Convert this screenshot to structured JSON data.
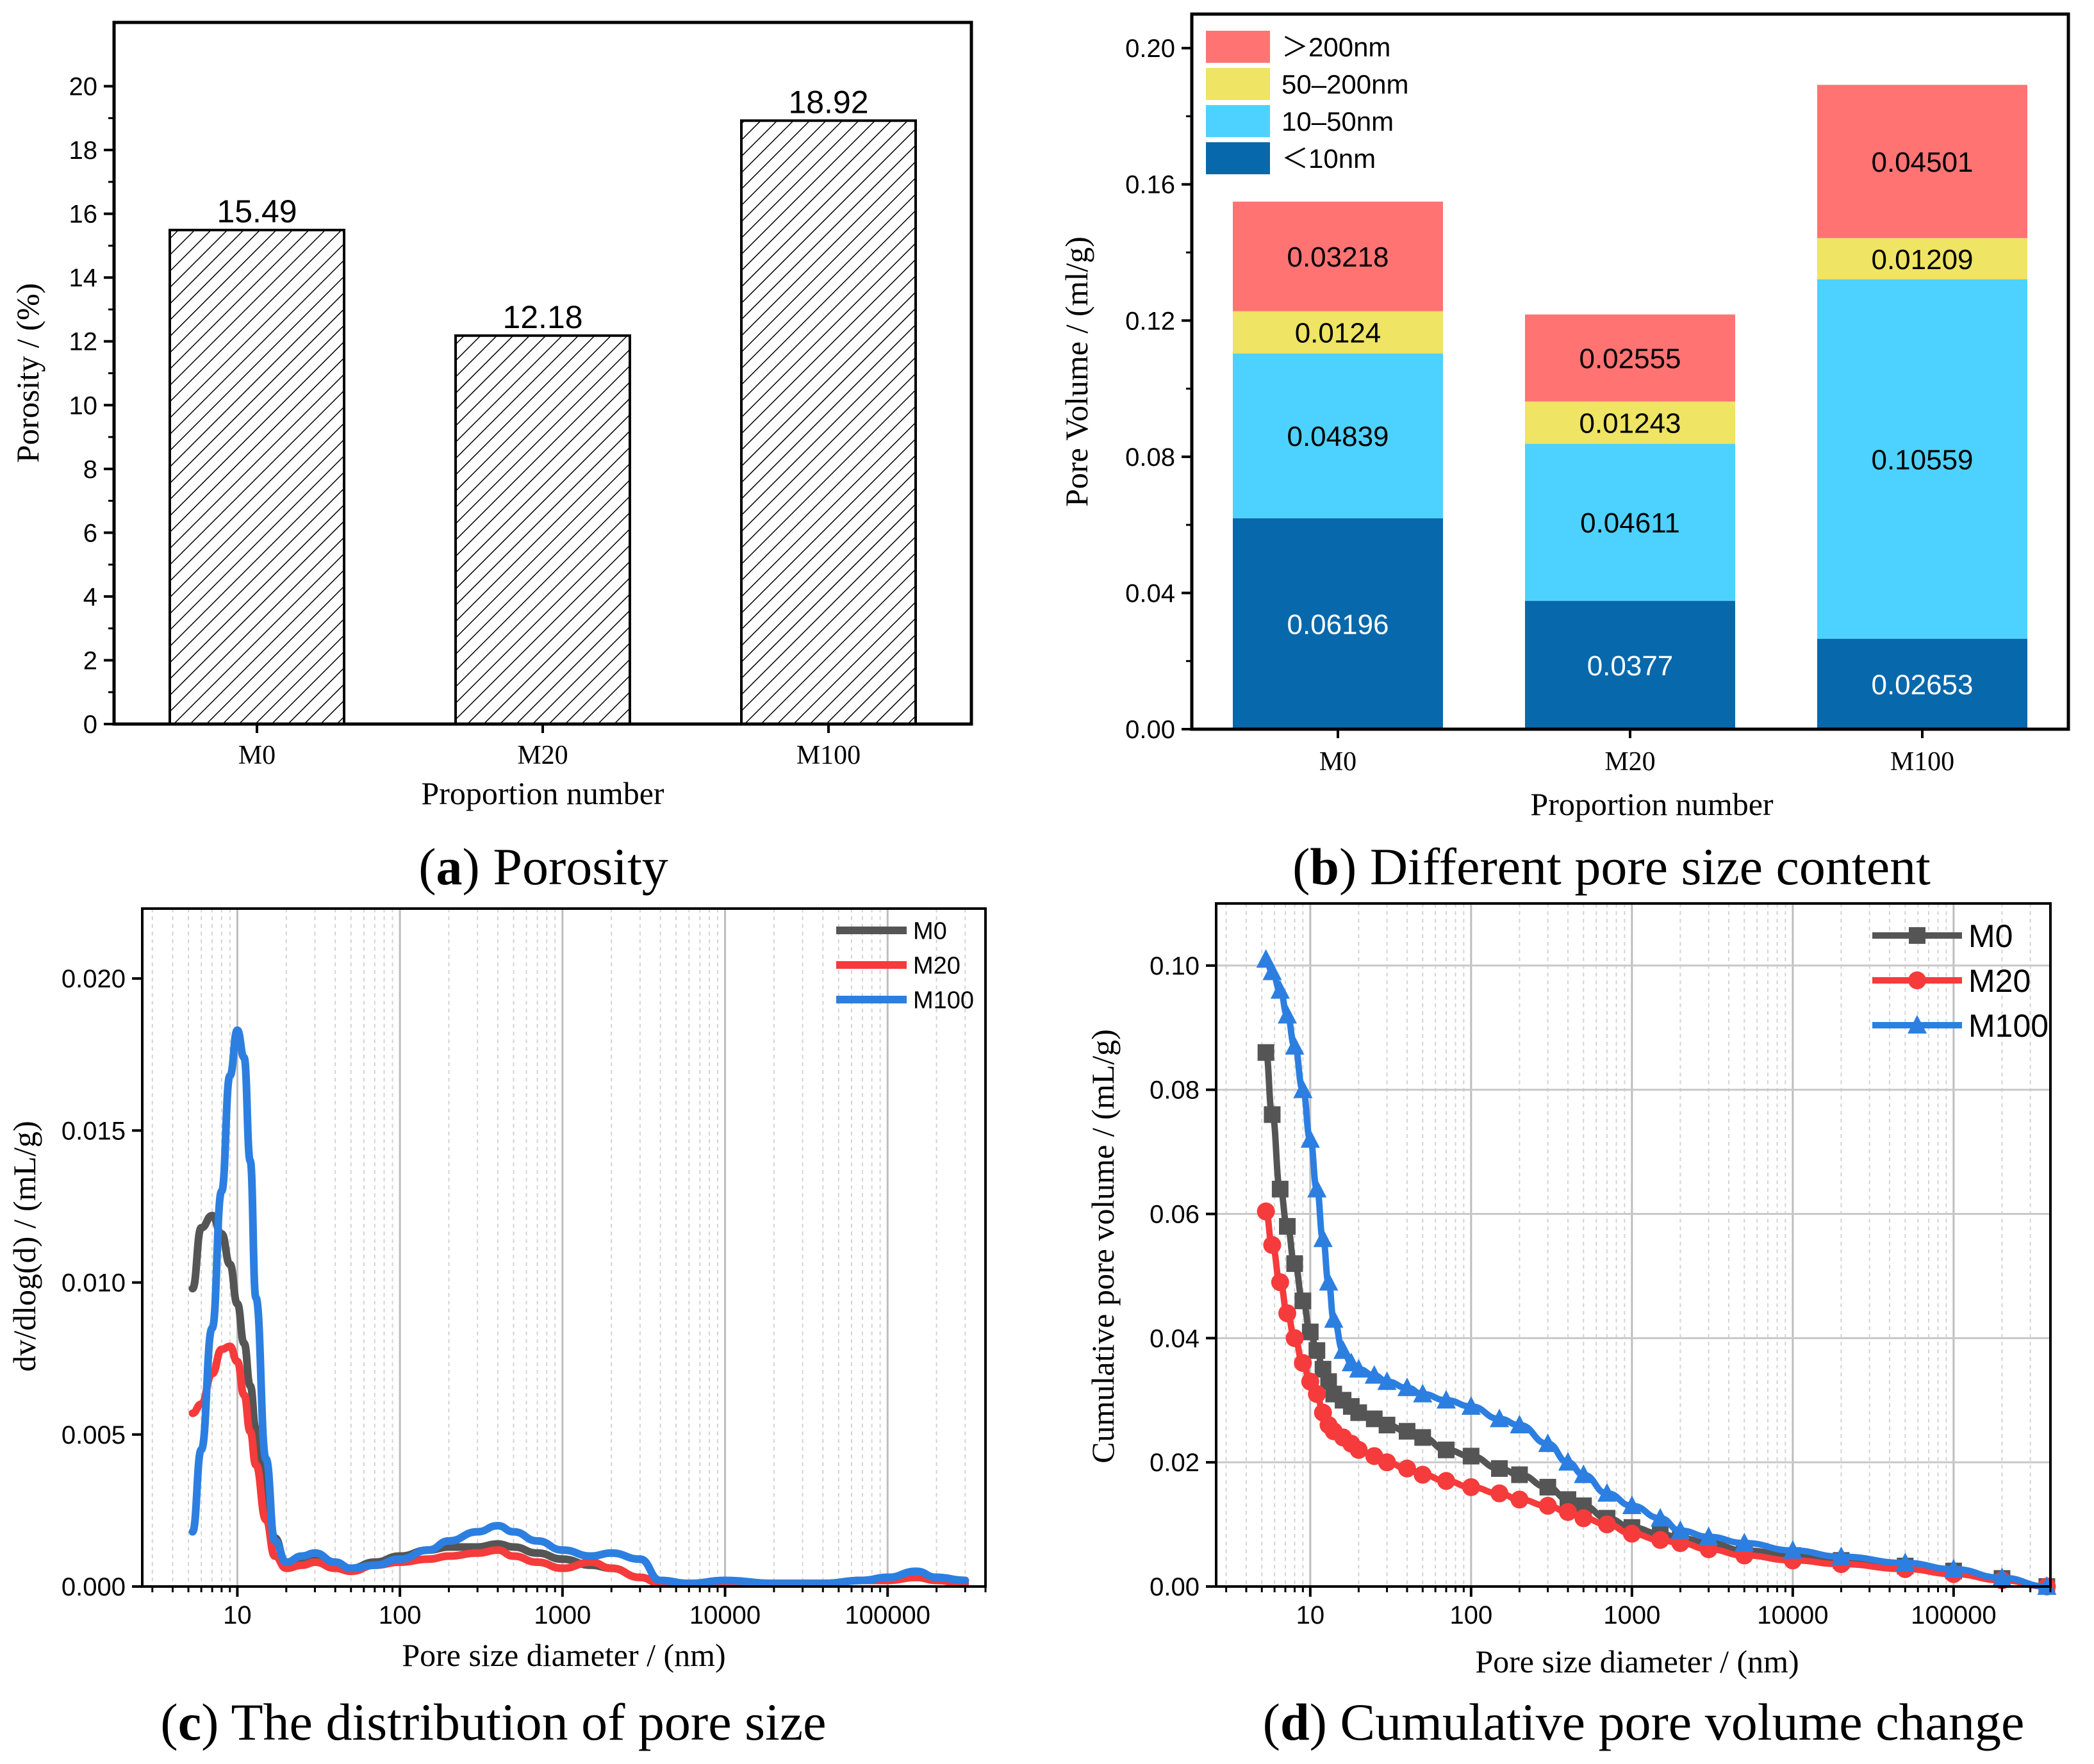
{
  "chart_data": [
    {
      "id": "a",
      "type": "bar",
      "caption_letter": "a",
      "caption_text": "Porosity",
      "categories": [
        "M0",
        "M20",
        "M100"
      ],
      "values": [
        15.49,
        12.18,
        18.92
      ],
      "value_labels": [
        "15.49",
        "12.18",
        "18.92"
      ],
      "xlabel": "Proportion number",
      "ylabel": "Porosity / (%)",
      "ylim": [
        0,
        22
      ],
      "yticks": [
        0,
        2,
        4,
        6,
        8,
        10,
        12,
        14,
        16,
        18,
        20
      ],
      "ytick_labels": [
        "0",
        "2",
        "4",
        "6",
        "8",
        "10",
        "12",
        "14",
        "16",
        "18",
        "20"
      ],
      "fill": "hatched"
    },
    {
      "id": "b",
      "type": "bar",
      "stacked": true,
      "caption_letter": "b",
      "caption_text": "Different pore size content",
      "categories": [
        "M0",
        "M20",
        "M100"
      ],
      "series": [
        {
          "name": "＜10nm",
          "color": "#0868AC",
          "label_color": "#ffffff",
          "values": [
            0.06196,
            0.0377,
            0.02653
          ],
          "labels": [
            "0.06196",
            "0.0377",
            "0.02653"
          ]
        },
        {
          "name": "10–50nm",
          "color": "#4DD2FF",
          "label_color": "#000000",
          "values": [
            0.04839,
            0.04611,
            0.10559
          ],
          "labels": [
            "0.04839",
            "0.04611",
            "0.10559"
          ]
        },
        {
          "name": "50–200nm",
          "color": "#EFE463",
          "label_color": "#000000",
          "values": [
            0.0124,
            0.01243,
            0.01209
          ],
          "labels": [
            "0.0124",
            "0.01243",
            "0.01209"
          ]
        },
        {
          "name": "＞200nm",
          "color": "#FF7373",
          "label_color": "#000000",
          "values": [
            0.03218,
            0.02555,
            0.04501
          ],
          "labels": [
            "0.03218",
            "0.02555",
            "0.04501"
          ]
        }
      ],
      "legend_order": [
        3,
        2,
        1,
        0
      ],
      "xlabel": "Proportion number",
      "ylabel": "Pore Volume / (ml/g)",
      "ylim": [
        0,
        0.21
      ],
      "yticks": [
        0,
        0.04,
        0.08,
        0.12,
        0.16,
        0.2
      ],
      "ytick_labels": [
        "0.00",
        "0.04",
        "0.08",
        "0.12",
        "0.16",
        "0.20"
      ],
      "legend_position": "top-left"
    },
    {
      "id": "c",
      "type": "line",
      "caption_letter": "c",
      "caption_text": "The distribution of pore size",
      "xscale": "log",
      "xlim": [
        2.6,
        400000
      ],
      "ylim": [
        0,
        0.0223
      ],
      "xticks": [
        10,
        100,
        1000,
        10000,
        100000
      ],
      "xtick_labels": [
        "10",
        "100",
        "1000",
        "10000",
        "100000"
      ],
      "yticks": [
        0,
        0.005,
        0.01,
        0.015,
        0.02
      ],
      "ytick_labels": [
        "0.000",
        "0.005",
        "0.010",
        "0.015",
        "0.020"
      ],
      "xlabel": "Pore size diameter / (nm)",
      "ylabel": "dv/dlog(d) / (mL/g)",
      "legend_position": "top-right",
      "series": [
        {
          "name": "M0",
          "color": "#555555",
          "x": [
            5.3,
            6,
            7,
            8,
            9,
            10,
            11,
            12,
            13,
            15,
            17,
            20,
            25,
            30,
            40,
            50,
            70,
            100,
            150,
            200,
            300,
            400,
            500,
            700,
            1000,
            1500,
            2000,
            3000,
            4000,
            6000,
            10000,
            20000,
            40000,
            70000,
            100000,
            150000,
            200000,
            300000
          ],
          "y": [
            0.0098,
            0.0118,
            0.0122,
            0.0116,
            0.0106,
            0.0093,
            0.008,
            0.0066,
            0.0052,
            0.0032,
            0.0016,
            0.0007,
            0.0008,
            0.0009,
            0.0007,
            0.0006,
            0.0008,
            0.001,
            0.0012,
            0.0013,
            0.0013,
            0.0014,
            0.0013,
            0.0011,
            0.0009,
            0.0007,
            0.0006,
            0.0003,
            0.0001,
            0.0001,
            0.0001,
            0.0001,
            0.0001,
            0.0002,
            0.0003,
            0.0003,
            0.0003,
            0.0002
          ]
        },
        {
          "name": "M20",
          "color": "#F53B3B",
          "x": [
            5.3,
            6,
            7,
            8,
            9,
            10,
            11,
            12,
            13,
            15,
            17,
            20,
            25,
            30,
            40,
            50,
            70,
            100,
            150,
            200,
            300,
            400,
            500,
            700,
            1000,
            1500,
            2000,
            3000,
            4000,
            6000,
            10000,
            20000,
            40000,
            70000,
            100000,
            150000,
            200000,
            300000
          ],
          "y": [
            0.0057,
            0.006,
            0.007,
            0.0078,
            0.0079,
            0.0074,
            0.0063,
            0.0051,
            0.004,
            0.0022,
            0.001,
            0.0006,
            0.0007,
            0.0008,
            0.0006,
            0.0005,
            0.0007,
            0.0008,
            0.0009,
            0.001,
            0.0011,
            0.0012,
            0.001,
            0.0008,
            0.0006,
            0.0008,
            0.0006,
            0.0003,
            0.0001,
            0.0001,
            0.0001,
            0.0001,
            0.0001,
            0.0002,
            0.0002,
            0.0003,
            0.0002,
            0.0001
          ]
        },
        {
          "name": "M100",
          "color": "#2C7FE0",
          "x": [
            5.3,
            6,
            7,
            8,
            9,
            10,
            11,
            12,
            13,
            15,
            17,
            20,
            25,
            30,
            40,
            50,
            70,
            100,
            150,
            200,
            300,
            400,
            500,
            700,
            1000,
            1500,
            2000,
            3000,
            4000,
            6000,
            10000,
            20000,
            40000,
            70000,
            100000,
            150000,
            200000,
            300000
          ],
          "y": [
            0.0018,
            0.0045,
            0.0085,
            0.013,
            0.0168,
            0.0183,
            0.0174,
            0.014,
            0.0095,
            0.0042,
            0.0015,
            0.0008,
            0.001,
            0.0011,
            0.0008,
            0.0006,
            0.0007,
            0.0009,
            0.0012,
            0.0015,
            0.0018,
            0.002,
            0.0018,
            0.0015,
            0.0012,
            0.001,
            0.0011,
            0.0009,
            0.0002,
            0.0001,
            0.0002,
            0.0001,
            0.0001,
            0.0002,
            0.0003,
            0.0005,
            0.0003,
            0.0002
          ]
        }
      ]
    },
    {
      "id": "d",
      "type": "line",
      "markers": true,
      "caption_letter": "d",
      "caption_text": "Cumulative pore volume change",
      "xscale": "log",
      "xlim": [
        2.6,
        400000
      ],
      "ylim": [
        0,
        0.11
      ],
      "xticks": [
        10,
        100,
        1000,
        10000,
        100000
      ],
      "xtick_labels": [
        "10",
        "100",
        "1000",
        "10000",
        "100000"
      ],
      "yticks": [
        0,
        0.02,
        0.04,
        0.06,
        0.08,
        0.1
      ],
      "ytick_labels": [
        "0.00",
        "0.02",
        "0.04",
        "0.06",
        "0.08",
        "0.10"
      ],
      "xlabel": "Pore size diameter / (nm)",
      "ylabel": "Cumulative pore volume / (mL/g)",
      "legend_position": "top-right",
      "series": [
        {
          "name": "M0",
          "color": "#555555",
          "marker": "square",
          "x": [
            5.3,
            5.8,
            6.5,
            7.2,
            8,
            9,
            10,
            11,
            12,
            13,
            14,
            16,
            18,
            20,
            25,
            30,
            40,
            50,
            70,
            100,
            150,
            200,
            300,
            400,
            500,
            700,
            1000,
            1500,
            2000,
            3000,
            5000,
            10000,
            20000,
            50000,
            100000,
            200000,
            380000
          ],
          "y": [
            0.086,
            0.076,
            0.064,
            0.058,
            0.052,
            0.046,
            0.041,
            0.038,
            0.035,
            0.033,
            0.031,
            0.03,
            0.029,
            0.028,
            0.027,
            0.026,
            0.025,
            0.024,
            0.022,
            0.021,
            0.019,
            0.018,
            0.016,
            0.014,
            0.013,
            0.011,
            0.0095,
            0.0085,
            0.0078,
            0.007,
            0.0058,
            0.005,
            0.0042,
            0.0033,
            0.0025,
            0.0013,
            0.0
          ]
        },
        {
          "name": "M20",
          "color": "#F53B3B",
          "marker": "circle",
          "x": [
            5.3,
            5.8,
            6.5,
            7.2,
            8,
            9,
            10,
            11,
            12,
            13,
            14,
            16,
            18,
            20,
            25,
            30,
            40,
            50,
            70,
            100,
            150,
            200,
            300,
            400,
            500,
            700,
            1000,
            1500,
            2000,
            3000,
            5000,
            10000,
            20000,
            50000,
            100000,
            200000,
            380000
          ],
          "y": [
            0.0604,
            0.055,
            0.049,
            0.044,
            0.04,
            0.036,
            0.033,
            0.031,
            0.028,
            0.026,
            0.025,
            0.024,
            0.023,
            0.022,
            0.021,
            0.02,
            0.019,
            0.018,
            0.017,
            0.016,
            0.015,
            0.014,
            0.013,
            0.012,
            0.011,
            0.01,
            0.0085,
            0.0075,
            0.007,
            0.006,
            0.005,
            0.0042,
            0.0036,
            0.0028,
            0.002,
            0.001,
            0.0
          ]
        },
        {
          "name": "M100",
          "color": "#2C7FE0",
          "marker": "triangle",
          "x": [
            5.3,
            5.8,
            6.5,
            7.2,
            8,
            9,
            10,
            11,
            12,
            13,
            14,
            16,
            18,
            20,
            25,
            30,
            40,
            50,
            70,
            100,
            150,
            200,
            300,
            400,
            500,
            700,
            1000,
            1500,
            2000,
            3000,
            5000,
            10000,
            20000,
            50000,
            100000,
            200000,
            380000
          ],
          "y": [
            0.101,
            0.099,
            0.096,
            0.092,
            0.087,
            0.08,
            0.072,
            0.064,
            0.056,
            0.049,
            0.043,
            0.038,
            0.036,
            0.035,
            0.034,
            0.033,
            0.032,
            0.031,
            0.03,
            0.029,
            0.027,
            0.026,
            0.023,
            0.02,
            0.018,
            0.015,
            0.013,
            0.011,
            0.009,
            0.008,
            0.007,
            0.0058,
            0.0048,
            0.0038,
            0.0028,
            0.0014,
            0.0
          ]
        }
      ]
    }
  ]
}
